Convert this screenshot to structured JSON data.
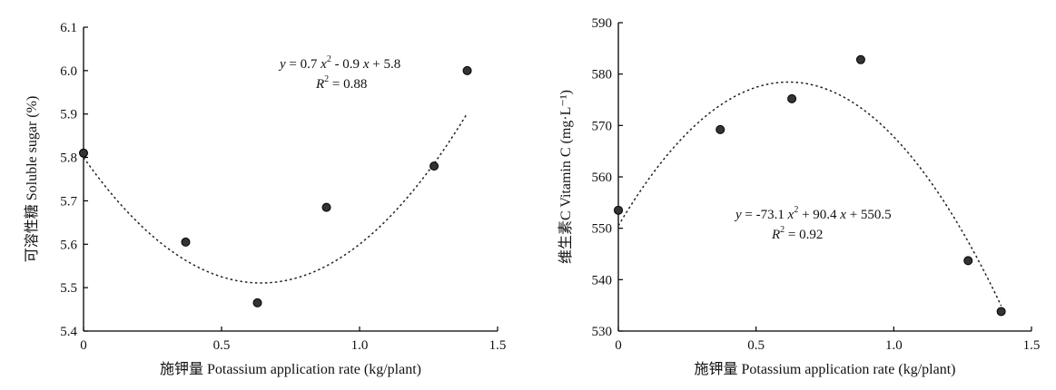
{
  "chart_data": [
    {
      "type": "scatter",
      "xlabel": "施钾量 Potassium application rate (kg/plant)",
      "ylabel": "可溶性糖 Soluble sugar (%)",
      "xlim": [
        0,
        1.5
      ],
      "ylim": [
        5.4,
        6.1
      ],
      "x_ticks": [
        "0",
        "0.5",
        "1.0",
        "1.5"
      ],
      "y_ticks": [
        "5.4",
        "5.5",
        "5.6",
        "5.7",
        "5.8",
        "5.9",
        "6.0",
        "6.1"
      ],
      "x": [
        0,
        0.37,
        0.63,
        0.88,
        1.27,
        1.39
      ],
      "y": [
        5.81,
        5.605,
        5.465,
        5.685,
        5.78,
        6.0
      ],
      "fit": {
        "a": 0.7,
        "b": -0.9,
        "c": 5.8
      },
      "equation_lines": [
        [
          {
            "t": "y",
            "i": true
          },
          {
            "t": " = 0.7 "
          },
          {
            "t": "x",
            "i": true
          },
          {
            "t": "2",
            "sup": true
          },
          {
            "t": " - 0.9 "
          },
          {
            "t": "x",
            "i": true
          },
          {
            "t": " + 5.8"
          }
        ],
        [
          {
            "t": "R",
            "i": true
          },
          {
            "t": "2",
            "sup": true
          },
          {
            "t": " = 0.88"
          }
        ]
      ],
      "grid": false,
      "marker_color": "#333333"
    },
    {
      "type": "scatter",
      "xlabel": "施钾量 Potassium application rate (kg/plant)",
      "ylabel": "维生素C Vitamin C (mg·L⁻¹)",
      "xlim": [
        0,
        1.5
      ],
      "ylim": [
        530,
        590
      ],
      "x_ticks": [
        "0",
        "0.5",
        "1.0",
        "1.5"
      ],
      "y_ticks": [
        "530",
        "540",
        "550",
        "560",
        "570",
        "580",
        "590"
      ],
      "x": [
        0,
        0.37,
        0.63,
        0.88,
        1.27,
        1.39
      ],
      "y": [
        553.5,
        569.2,
        575.2,
        582.8,
        543.7,
        533.8
      ],
      "fit": {
        "a": -73.1,
        "b": 90.4,
        "c": 550.5
      },
      "equation_lines": [
        [
          {
            "t": "y",
            "i": true
          },
          {
            "t": " = -73.1 "
          },
          {
            "t": "x",
            "i": true
          },
          {
            "t": "2",
            "sup": true
          },
          {
            "t": " + 90.4 "
          },
          {
            "t": "x",
            "i": true
          },
          {
            "t": " + 550.5"
          }
        ],
        [
          {
            "t": "R",
            "i": true
          },
          {
            "t": "2",
            "sup": true
          },
          {
            "t": " = 0.92"
          }
        ]
      ],
      "grid": false,
      "marker_color": "#333333"
    }
  ]
}
